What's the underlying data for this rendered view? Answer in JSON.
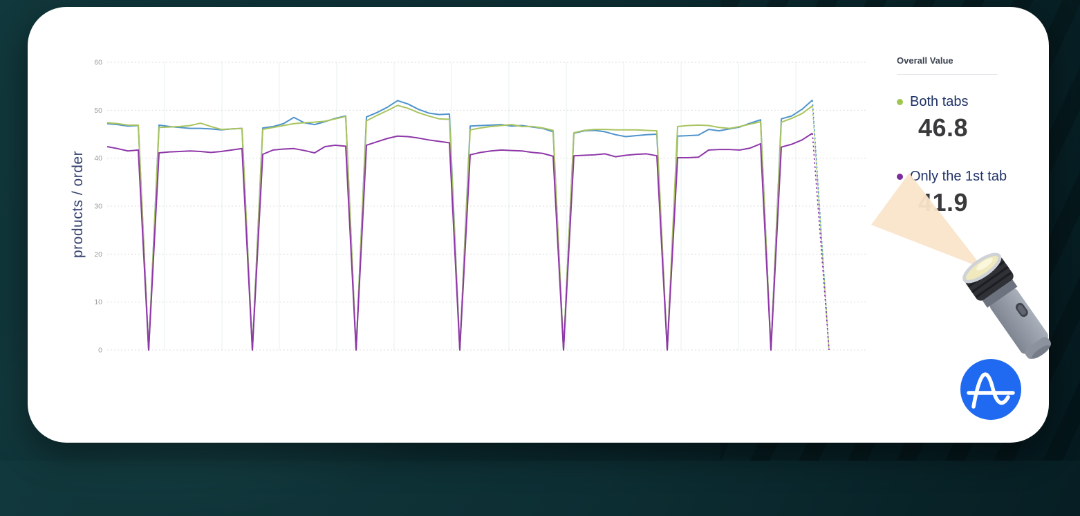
{
  "chart_data": {
    "type": "line",
    "title": "",
    "xlabel": "",
    "ylabel": "products / order",
    "ylim": [
      0,
      60
    ],
    "yticks": [
      0,
      10,
      20,
      30,
      40,
      50,
      60
    ],
    "grid": "horizontal dotted gray + faint vertical teal",
    "legend_position": "right panel",
    "note_visible_behavior": "periodic dips to 0 every period; final partial point shown as dashed drop to 0",
    "series": [
      {
        "name": "",
        "legend_visible": false,
        "color": "#4f93cc",
        "values": [
          47.2,
          47.0,
          46.7,
          46.8,
          0,
          46.9,
          46.6,
          46.4,
          46.2,
          46.2,
          46.1,
          45.9,
          46.1,
          46.2,
          0,
          46.3,
          46.6,
          47.2,
          48.5,
          47.4,
          47.0,
          47.6,
          48.3,
          48.8,
          0,
          48.6,
          49.5,
          50.6,
          52.0,
          51.3,
          50.2,
          49.4,
          49.1,
          49.2,
          0,
          46.7,
          46.8,
          46.9,
          47.0,
          46.7,
          46.8,
          46.5,
          46.2,
          45.5,
          0,
          45.2,
          45.7,
          45.8,
          45.5,
          44.9,
          44.5,
          44.7,
          44.9,
          45.0,
          0,
          44.6,
          44.7,
          44.8,
          46.0,
          45.7,
          46.1,
          46.5,
          47.3,
          48.0,
          0,
          48.2,
          48.8,
          50.2,
          52.1
        ]
      },
      {
        "name": "Both tabs",
        "legend_visible": true,
        "color": "#a9c45f",
        "values": [
          47.4,
          47.2,
          46.9,
          46.9,
          0,
          46.4,
          46.5,
          46.6,
          46.8,
          47.3,
          46.6,
          46.0,
          46.1,
          46.2,
          0,
          46.0,
          46.4,
          46.8,
          47.2,
          47.4,
          47.5,
          47.7,
          48.2,
          48.7,
          0,
          47.8,
          48.9,
          49.9,
          51.0,
          50.4,
          49.5,
          48.8,
          48.2,
          48.1,
          0,
          45.9,
          46.3,
          46.6,
          46.8,
          47.0,
          46.6,
          46.6,
          46.3,
          45.8,
          0,
          45.3,
          45.8,
          46.0,
          46.0,
          45.9,
          45.9,
          45.9,
          45.8,
          45.7,
          0,
          46.6,
          46.8,
          46.9,
          46.8,
          46.4,
          46.2,
          46.6,
          47.1,
          47.6,
          0,
          47.5,
          48.3,
          49.3,
          50.9
        ]
      },
      {
        "name": "Only the 1st tab",
        "legend_visible": true,
        "color": "#8e37a8",
        "values": [
          42.4,
          42.0,
          41.5,
          41.7,
          0,
          41.1,
          41.3,
          41.4,
          41.5,
          41.4,
          41.2,
          41.4,
          41.7,
          42.0,
          0,
          40.8,
          41.7,
          41.9,
          42.0,
          41.6,
          41.1,
          42.4,
          42.7,
          42.5,
          0,
          42.7,
          43.4,
          44.1,
          44.6,
          44.5,
          44.2,
          43.8,
          43.5,
          43.2,
          0,
          40.7,
          41.2,
          41.5,
          41.7,
          41.6,
          41.5,
          41.2,
          41.0,
          40.4,
          0,
          40.5,
          40.6,
          40.7,
          40.9,
          40.3,
          40.6,
          40.8,
          40.9,
          40.5,
          0,
          40.1,
          40.1,
          40.2,
          41.7,
          41.8,
          41.8,
          41.7,
          42.1,
          43.0,
          0,
          42.3,
          42.9,
          43.8,
          45.2
        ]
      }
    ],
    "dashed_tail": {
      "from_last_point": true,
      "end_value": 0
    }
  },
  "legend_panel": {
    "title": "Overall Value",
    "items": [
      {
        "label": "Both tabs",
        "value": "46.8",
        "dot_color": "#9ec74d"
      },
      {
        "label": "Only the 1st tab",
        "value": "41.9",
        "dot_color": "#7d2d9c"
      }
    ]
  },
  "icons": {
    "flashlight": "flashlight-emoji with peach light beam pointing up-left",
    "amplitude_logo": "white sine-wave A on blue circle",
    "logo_color": "#1f6af0",
    "beam_color": "#fae4ca"
  },
  "colors": {
    "card_bg": "#ffffff",
    "page_bg": "#0d2f34",
    "tick_label": "#9b9b9b",
    "axis_title": "#33406e",
    "legend_label": "#1f3266",
    "legend_value": "#3a3a3c"
  }
}
